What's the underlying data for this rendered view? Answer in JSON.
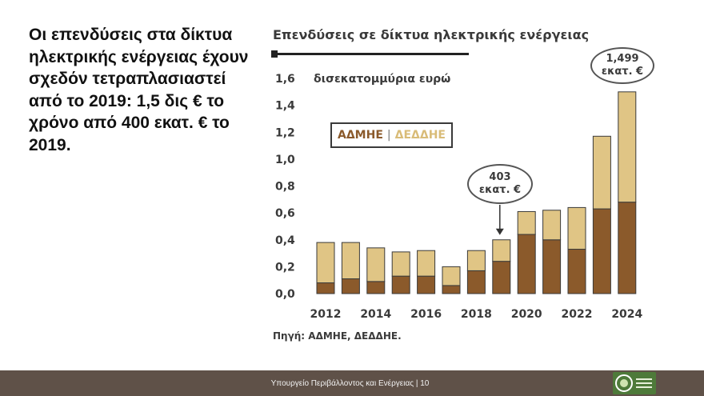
{
  "lead_text": "Οι επενδύσεις στα δίκτυα ηλεκτρικής ενέργειας έχουν σχεδόν τετραπλασιαστεί από το 2019: 1,5 δις € το χρόνο από 400 εκατ. € το 2019.",
  "footer": {
    "text": "Υπουργείο Περιβάλλοντος και Ενέργειας | 10",
    "logo_icon": "ministry-logo"
  },
  "chart_data": {
    "type": "bar",
    "stacked": true,
    "title": "Επενδύσεις σε δίκτυα ηλεκτρικής ενέργειας",
    "ylabel": "δισεκατομμύρια ευρώ",
    "ylim": [
      0,
      1.6
    ],
    "y_ticks": [
      "0,0",
      "0,2",
      "0,4",
      "0,6",
      "0,8",
      "1,0",
      "1,2",
      "1,4",
      "1,6"
    ],
    "y_tick_values": [
      0,
      0.2,
      0.4,
      0.6,
      0.8,
      1.0,
      1.2,
      1.4,
      1.6
    ],
    "categories": [
      2012,
      2013,
      2014,
      2015,
      2016,
      2017,
      2018,
      2019,
      2020,
      2021,
      2022,
      2023,
      2024
    ],
    "x_tick_labels": [
      "2012",
      "2014",
      "2016",
      "2018",
      "2020",
      "2022",
      "2024"
    ],
    "series": [
      {
        "name": "ΑΔΜΗΕ",
        "color": "#8B5A2B",
        "values": [
          0.08,
          0.11,
          0.09,
          0.13,
          0.13,
          0.06,
          0.17,
          0.24,
          0.44,
          0.4,
          0.33,
          0.63,
          0.68
        ]
      },
      {
        "name": "ΔΕΔΔΗΕ",
        "color": "#E0C585",
        "values": [
          0.3,
          0.27,
          0.25,
          0.18,
          0.19,
          0.14,
          0.15,
          0.16,
          0.17,
          0.22,
          0.31,
          0.54,
          0.82
        ]
      }
    ],
    "legend": {
      "left": "ΑΔΜΗΕ",
      "separator": "|",
      "right": "ΔΕΔΔΗΕ",
      "placement": "top-left"
    },
    "annotations": [
      {
        "category": 2019,
        "line1": "403",
        "line2": "εκατ. €"
      },
      {
        "category": 2024,
        "line1": "1,499",
        "line2": "εκατ. €"
      }
    ],
    "source": "Πηγή: ΑΔΜΗΕ, ΔΕΔΔΗΕ."
  }
}
